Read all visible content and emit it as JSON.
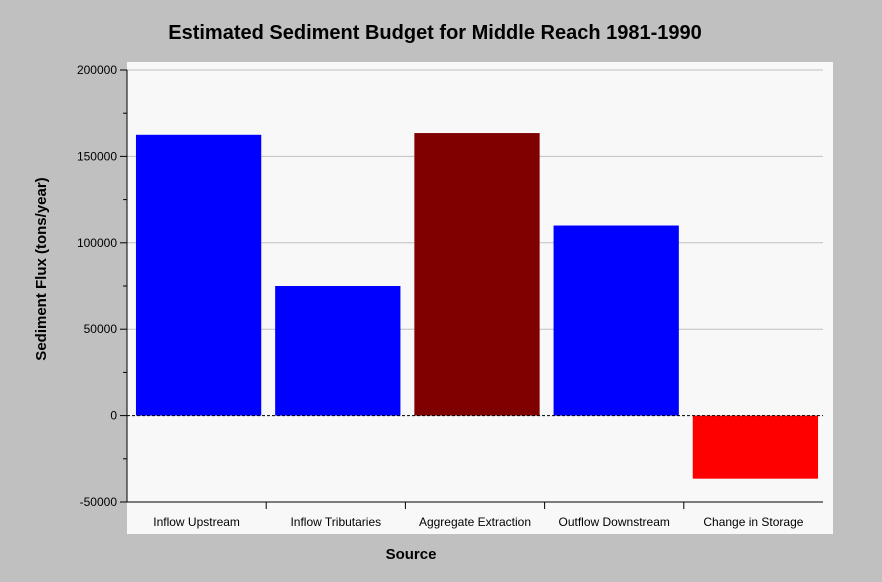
{
  "chart_data": {
    "type": "bar",
    "title": "Estimated Sediment Budget for Middle Reach 1981-1990",
    "xlabel": "Source",
    "ylabel": "Sediment Flux (tons/year)",
    "categories": [
      "Inflow Upstream",
      "Inflow Tributaries",
      "Aggregate Extraction",
      "Outflow Downstream",
      "Change in Storage"
    ],
    "values": [
      162500,
      75000,
      163500,
      110000,
      -36500
    ],
    "bar_colors": [
      "#0000ff",
      "#0000ff",
      "#800000",
      "#0000ff",
      "#ff0000"
    ],
    "ylim": [
      -50000,
      200000
    ],
    "yticks": [
      -50000,
      0,
      50000,
      100000,
      150000,
      200000
    ],
    "ytick_labels": [
      "-50000",
      "0",
      "50000",
      "100000",
      "150000",
      "200000"
    ],
    "grid": true,
    "zero_line": "dashed",
    "legend": "none"
  }
}
